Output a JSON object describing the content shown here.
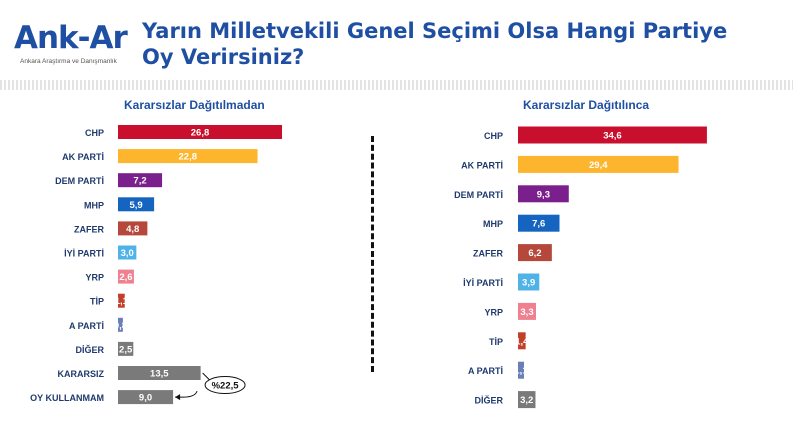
{
  "logo": {
    "brand": "Ank-Ar",
    "tagline": "Ankara Araştırma ve Danışmanlık"
  },
  "title": "Yarın Milletvekili Genel Seçimi Olsa Hangi Partiye Oy Verirsiniz?",
  "combined_label": "%22,5",
  "chart_data": [
    {
      "type": "bar",
      "orientation": "horizontal",
      "title": "Kararsızlar Dağıtılmadan",
      "categories": [
        "CHP",
        "AK PARTİ",
        "DEM PARTİ",
        "MHP",
        "ZAFER",
        "İYİ PARTİ",
        "YRP",
        "TİP",
        "A PARTİ",
        "DİĞER",
        "KARARSIZ",
        "OY KULLANMAM"
      ],
      "values": [
        26.8,
        22.8,
        7.2,
        5.9,
        4.8,
        3.0,
        2.6,
        1.1,
        0.8,
        2.5,
        13.5,
        9.0
      ],
      "value_labels": [
        "26,8",
        "22,8",
        "7,2",
        "5,9",
        "4,8",
        "3,0",
        "2,6",
        "1,1",
        "0,8",
        "2,5",
        "13,5",
        "9,0"
      ],
      "colors": [
        "#c8102e",
        "#fcb52d",
        "#7b1f8c",
        "#1565c0",
        "#b5483a",
        "#4fb3e8",
        "#ef8090",
        "#c0402a",
        "#6a7fb5",
        "#7a7a7a",
        "#7a7a7a",
        "#7a7a7a"
      ],
      "annotation": {
        "text": "%22,5",
        "groups": [
          "KARARSIZ",
          "OY KULLANMAM"
        ]
      }
    },
    {
      "type": "bar",
      "orientation": "horizontal",
      "title": "Kararsızlar Dağıtılınca",
      "categories": [
        "CHP",
        "AK PARTİ",
        "DEM PARTİ",
        "MHP",
        "ZAFER",
        "İYİ PARTİ",
        "YRP",
        "TİP",
        "A PARTİ",
        "DİĞER"
      ],
      "values": [
        34.6,
        29.4,
        9.3,
        7.6,
        6.2,
        3.9,
        3.3,
        1.4,
        1.1,
        3.2
      ],
      "value_labels": [
        "34,6",
        "29,4",
        "9,3",
        "7,6",
        "6,2",
        "3,9",
        "3,3",
        "1,4",
        "1,1",
        "3,2"
      ],
      "colors": [
        "#c8102e",
        "#fcb52d",
        "#7b1f8c",
        "#1565c0",
        "#b5483a",
        "#4fb3e8",
        "#ef8090",
        "#c0402a",
        "#6a7fb5",
        "#7a7a7a"
      ]
    }
  ]
}
